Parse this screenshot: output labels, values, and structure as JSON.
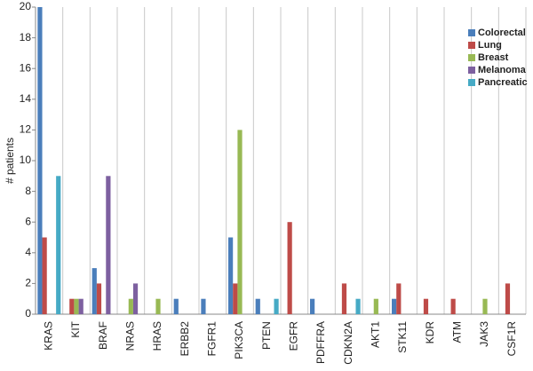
{
  "chart_data": {
    "type": "bar",
    "y_label": "# patients",
    "categories": [
      "KRAS",
      "KIT",
      "BRAF",
      "NRAS",
      "HRAS",
      "ERBB2",
      "FGFR1",
      "PIK3CA",
      "PTEN",
      "EGFR",
      "PDFFRA",
      "CDKN2A",
      "AKT1",
      "STK11",
      "KDR",
      "ATM",
      "JAK3",
      "CSF1R"
    ],
    "series": [
      {
        "name": "Colorectal",
        "color": "#4a7ebb",
        "values": [
          20,
          0,
          3,
          0,
          0,
          1,
          1,
          5,
          1,
          0,
          1,
          0,
          0,
          1,
          0,
          0,
          0,
          0
        ]
      },
      {
        "name": "Lung",
        "color": "#be4b48",
        "values": [
          5,
          1,
          2,
          0,
          0,
          0,
          0,
          2,
          0,
          6,
          0,
          2,
          0,
          2,
          1,
          1,
          0,
          2
        ]
      },
      {
        "name": "Breast",
        "color": "#98b954",
        "values": [
          0,
          1,
          0,
          1,
          1,
          0,
          0,
          12,
          0,
          0,
          0,
          0,
          1,
          0,
          0,
          0,
          1,
          0
        ]
      },
      {
        "name": "Melanoma",
        "color": "#7d60a0",
        "values": [
          0,
          1,
          9,
          2,
          0,
          0,
          0,
          0,
          0,
          0,
          0,
          0,
          0,
          0,
          0,
          0,
          0,
          0
        ]
      },
      {
        "name": "Pancreatic",
        "color": "#46aac5",
        "values": [
          9,
          0,
          0,
          0,
          0,
          0,
          0,
          0,
          1,
          0,
          0,
          1,
          0,
          0,
          0,
          0,
          0,
          0
        ]
      }
    ],
    "ylim": [
      0,
      20
    ],
    "yticks": [
      0,
      2,
      4,
      6,
      8,
      10,
      12,
      14,
      16,
      18,
      20
    ],
    "grid": true,
    "legend": "upper-right"
  }
}
